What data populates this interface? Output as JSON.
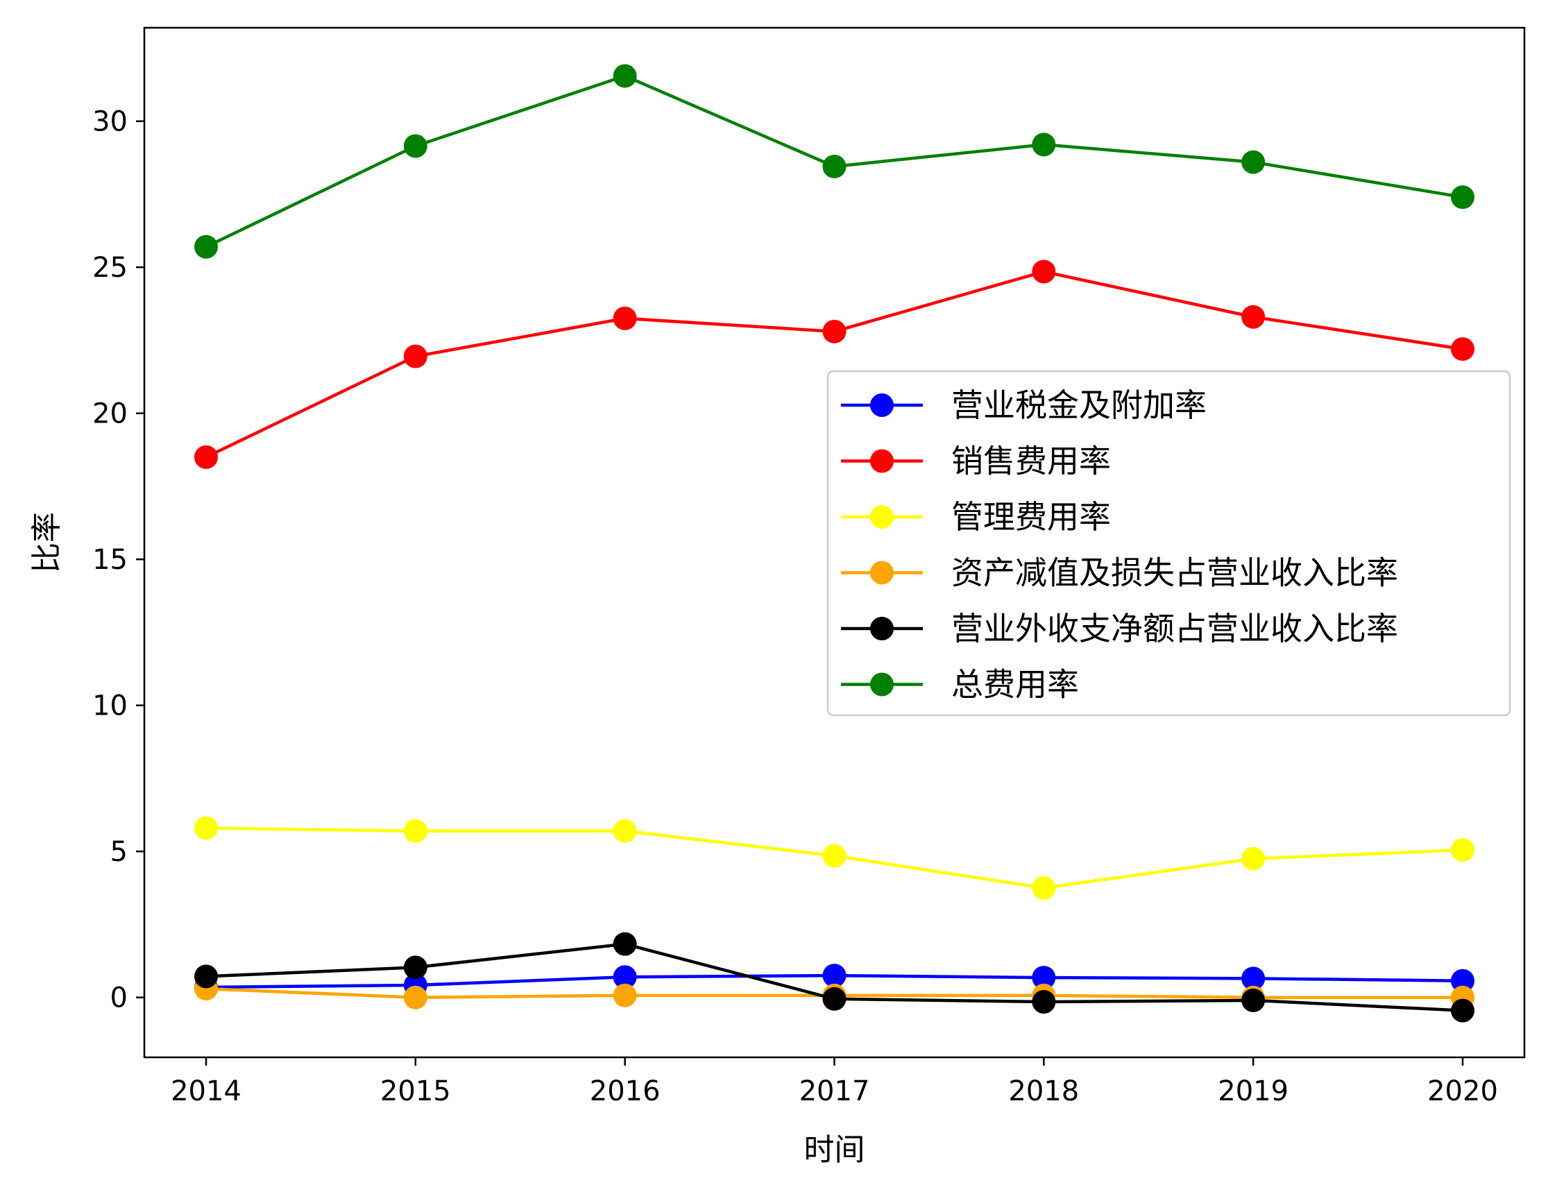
{
  "chart_data": {
    "type": "line",
    "title": "",
    "xlabel": "时间",
    "ylabel": "比率",
    "x": [
      "2014",
      "2015",
      "2016",
      "2017",
      "2018",
      "2019",
      "2020"
    ],
    "ylim": [
      -2.05,
      33.2
    ],
    "yticks": [
      0,
      5,
      10,
      15,
      20,
      25,
      30
    ],
    "grid": false,
    "legend_position": "center-right",
    "series": [
      {
        "name": "营业税金及附加率",
        "color": "#0000ff",
        "values": [
          0.35,
          0.42,
          0.7,
          0.75,
          0.68,
          0.65,
          0.57
        ]
      },
      {
        "name": "销售费用率",
        "color": "#ff0000",
        "values": [
          18.5,
          21.95,
          23.25,
          22.8,
          24.85,
          23.3,
          22.2
        ]
      },
      {
        "name": "管理费用率",
        "color": "#ffff00",
        "values": [
          5.8,
          5.7,
          5.7,
          4.85,
          3.75,
          4.75,
          5.05
        ]
      },
      {
        "name": "资产减值及损失占营业收入比率",
        "color": "#ffa500",
        "values": [
          0.3,
          0.0,
          0.07,
          0.07,
          0.07,
          0.0,
          0.0
        ]
      },
      {
        "name": "营业外收支净额占营业收入比率",
        "color": "#000000",
        "values": [
          0.72,
          1.03,
          1.83,
          -0.05,
          -0.15,
          -0.1,
          -0.45
        ]
      },
      {
        "name": "总费用率",
        "color": "#008000",
        "values": [
          25.7,
          29.15,
          31.55,
          28.45,
          29.2,
          28.6,
          27.4
        ]
      }
    ]
  }
}
